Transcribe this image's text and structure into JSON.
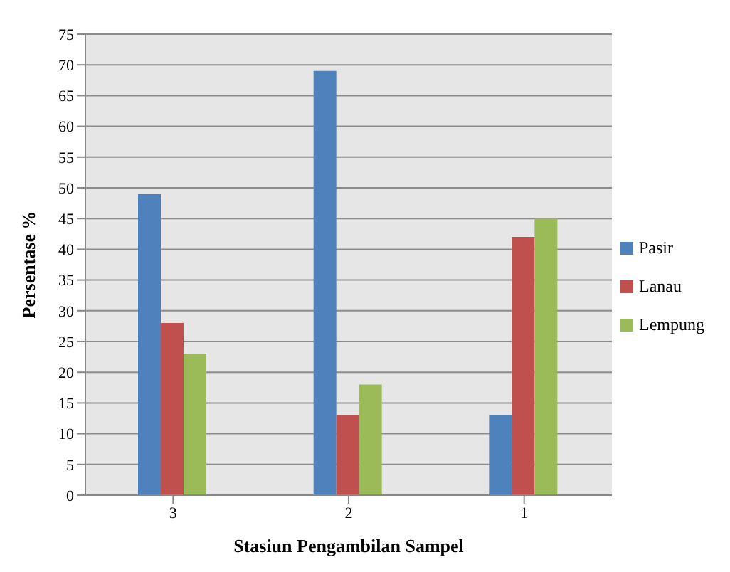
{
  "chart_data": {
    "type": "bar",
    "xlabel": "Stasiun Pengambilan Sampel",
    "ylabel": "Persentase %",
    "categories": [
      "3",
      "2",
      "1"
    ],
    "series": [
      {
        "name": "Pasir",
        "color": "#4f81bd",
        "values": [
          49,
          69,
          13
        ]
      },
      {
        "name": "Lanau",
        "color": "#c0504d",
        "values": [
          28,
          13,
          42
        ]
      },
      {
        "name": "Lempung",
        "color": "#9bbb59",
        "values": [
          23,
          18,
          45
        ]
      }
    ],
    "ylim": [
      0,
      75
    ],
    "yticks": [
      0,
      5,
      10,
      15,
      20,
      25,
      30,
      35,
      40,
      45,
      50,
      55,
      60,
      65,
      70,
      75
    ],
    "grid": "y",
    "legend": "right"
  }
}
